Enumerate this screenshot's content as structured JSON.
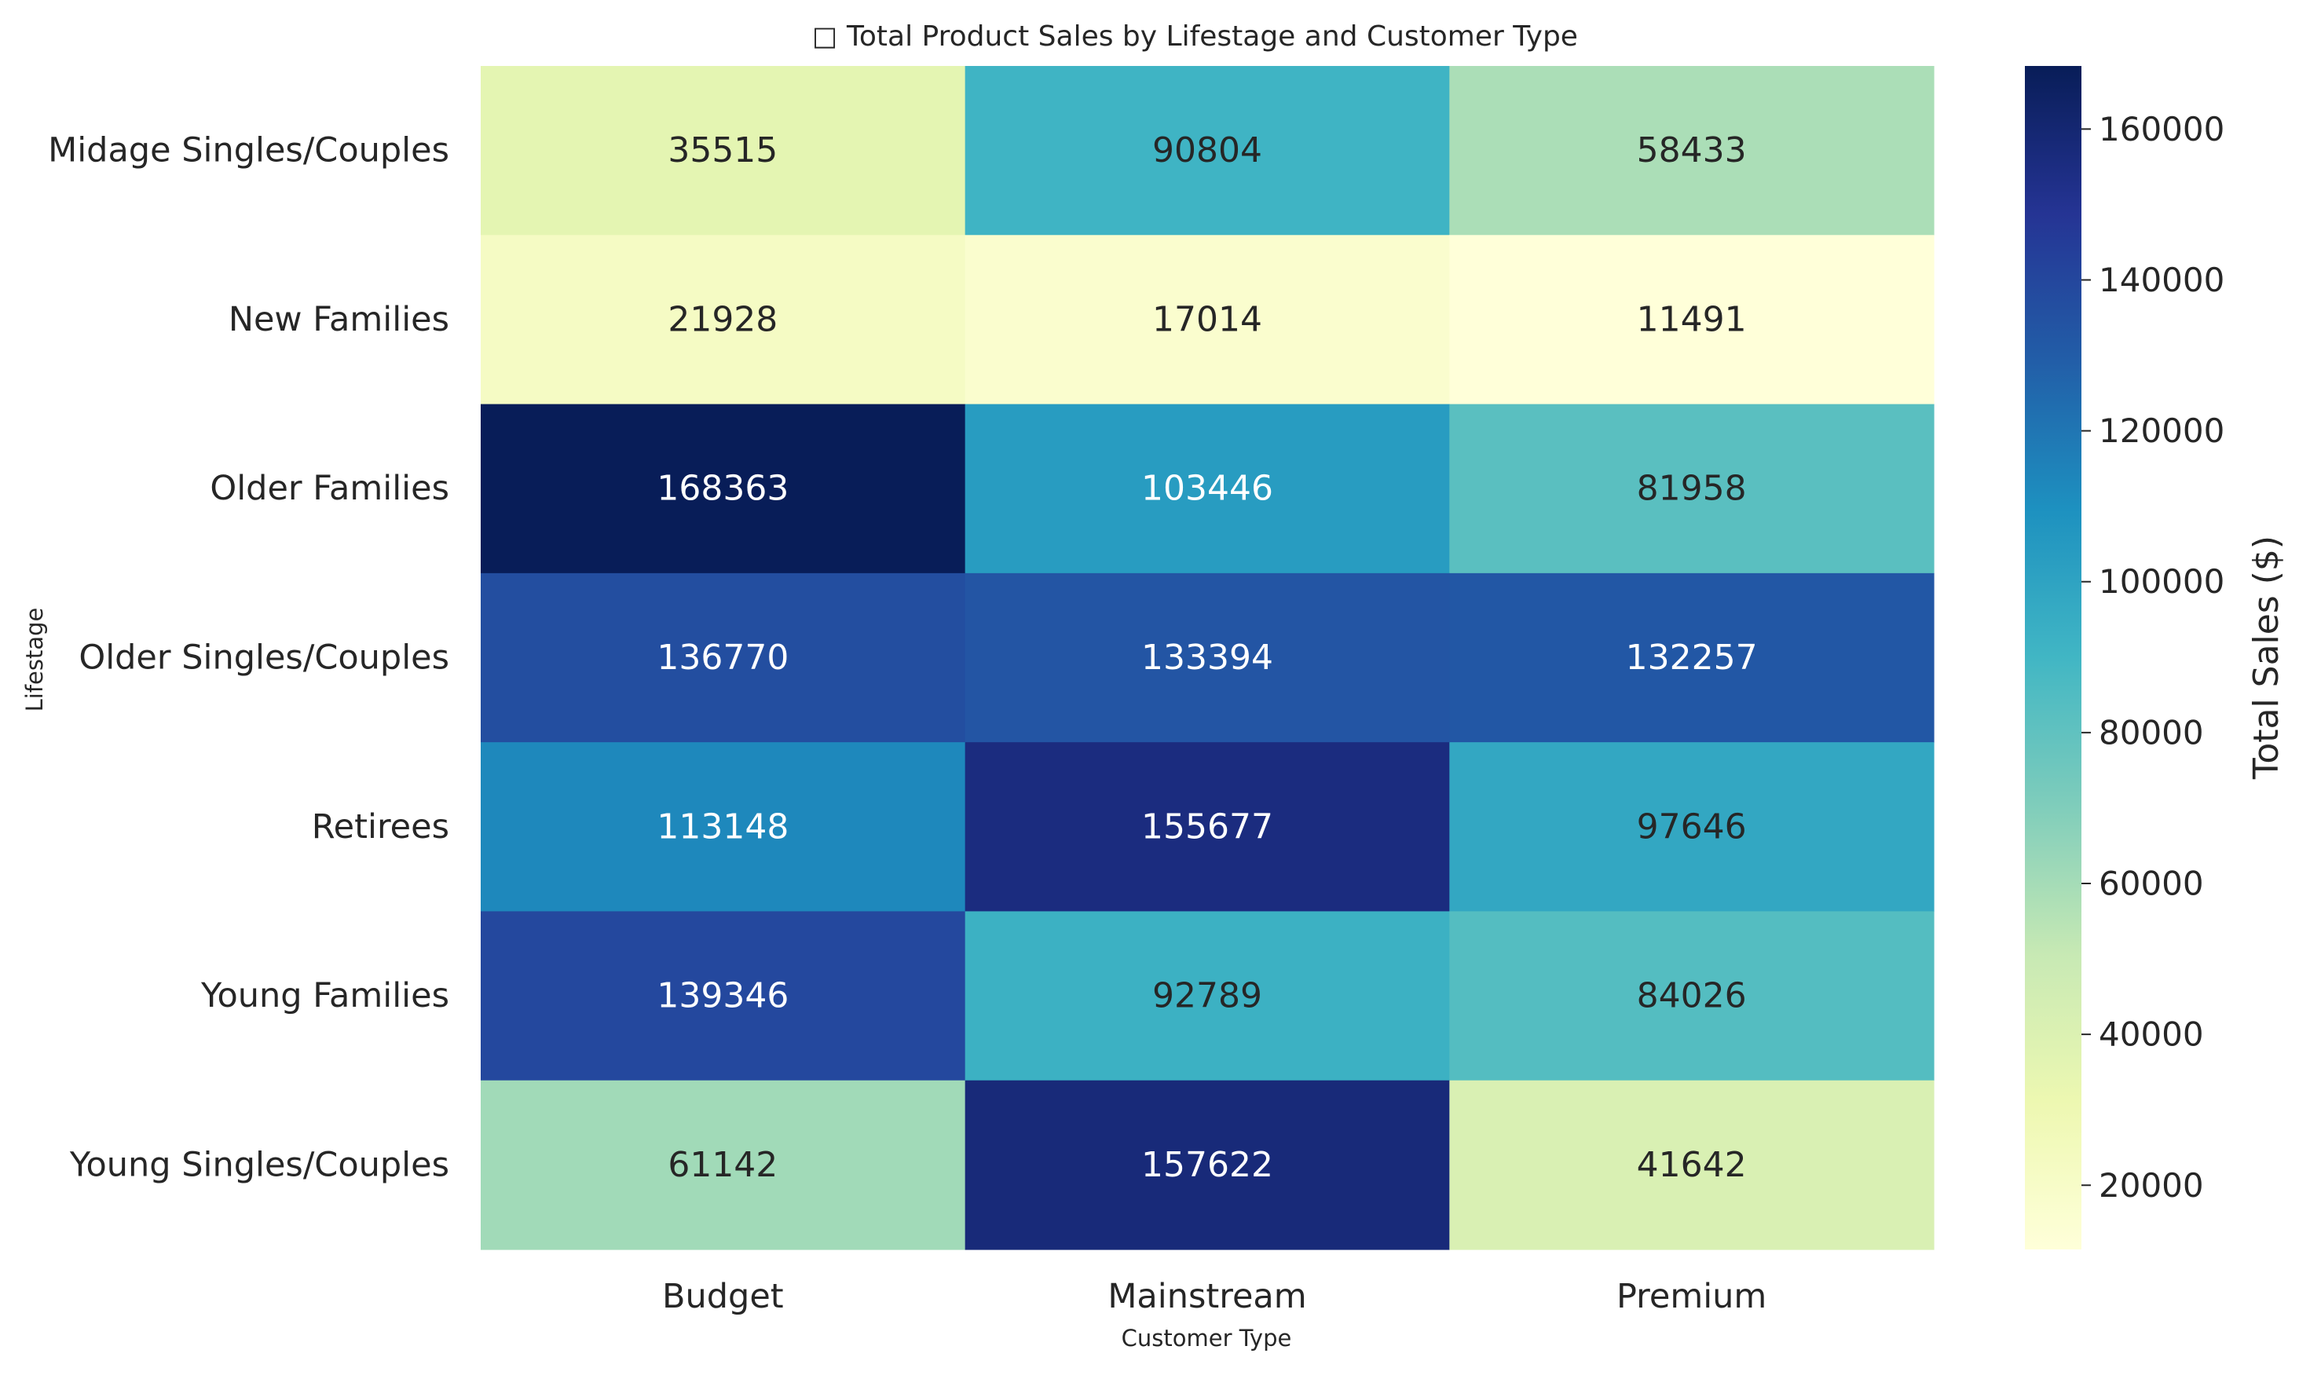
{
  "chart_data": {
    "type": "heatmap",
    "title_icon_name": "missing-glyph-icon",
    "title_icon_glyph": "□",
    "title": "Total Product Sales by Lifestage and Customer Type",
    "xlabel": "Customer Type",
    "ylabel": "Lifestage",
    "colorbar_label": "Total Sales ($)",
    "x_categories": [
      "Budget",
      "Mainstream",
      "Premium"
    ],
    "y_categories": [
      "Midage Singles/Couples",
      "New Families",
      "Older Families",
      "Older Singles/Couples",
      "Retirees",
      "Young Families",
      "Young Singles/Couples"
    ],
    "values": [
      [
        35515,
        90804,
        58433
      ],
      [
        21928,
        17014,
        11491
      ],
      [
        168363,
        103446,
        81958
      ],
      [
        136770,
        133394,
        132257
      ],
      [
        113148,
        155677,
        97646
      ],
      [
        139346,
        92789,
        84026
      ],
      [
        61142,
        157622,
        41642
      ]
    ],
    "colorscale": "YlGnBu",
    "value_range": [
      11491,
      168363
    ],
    "colorbar_ticks": [
      20000,
      40000,
      60000,
      80000,
      100000,
      120000,
      140000,
      160000
    ],
    "grid": false,
    "legend": "colorbar-right"
  }
}
